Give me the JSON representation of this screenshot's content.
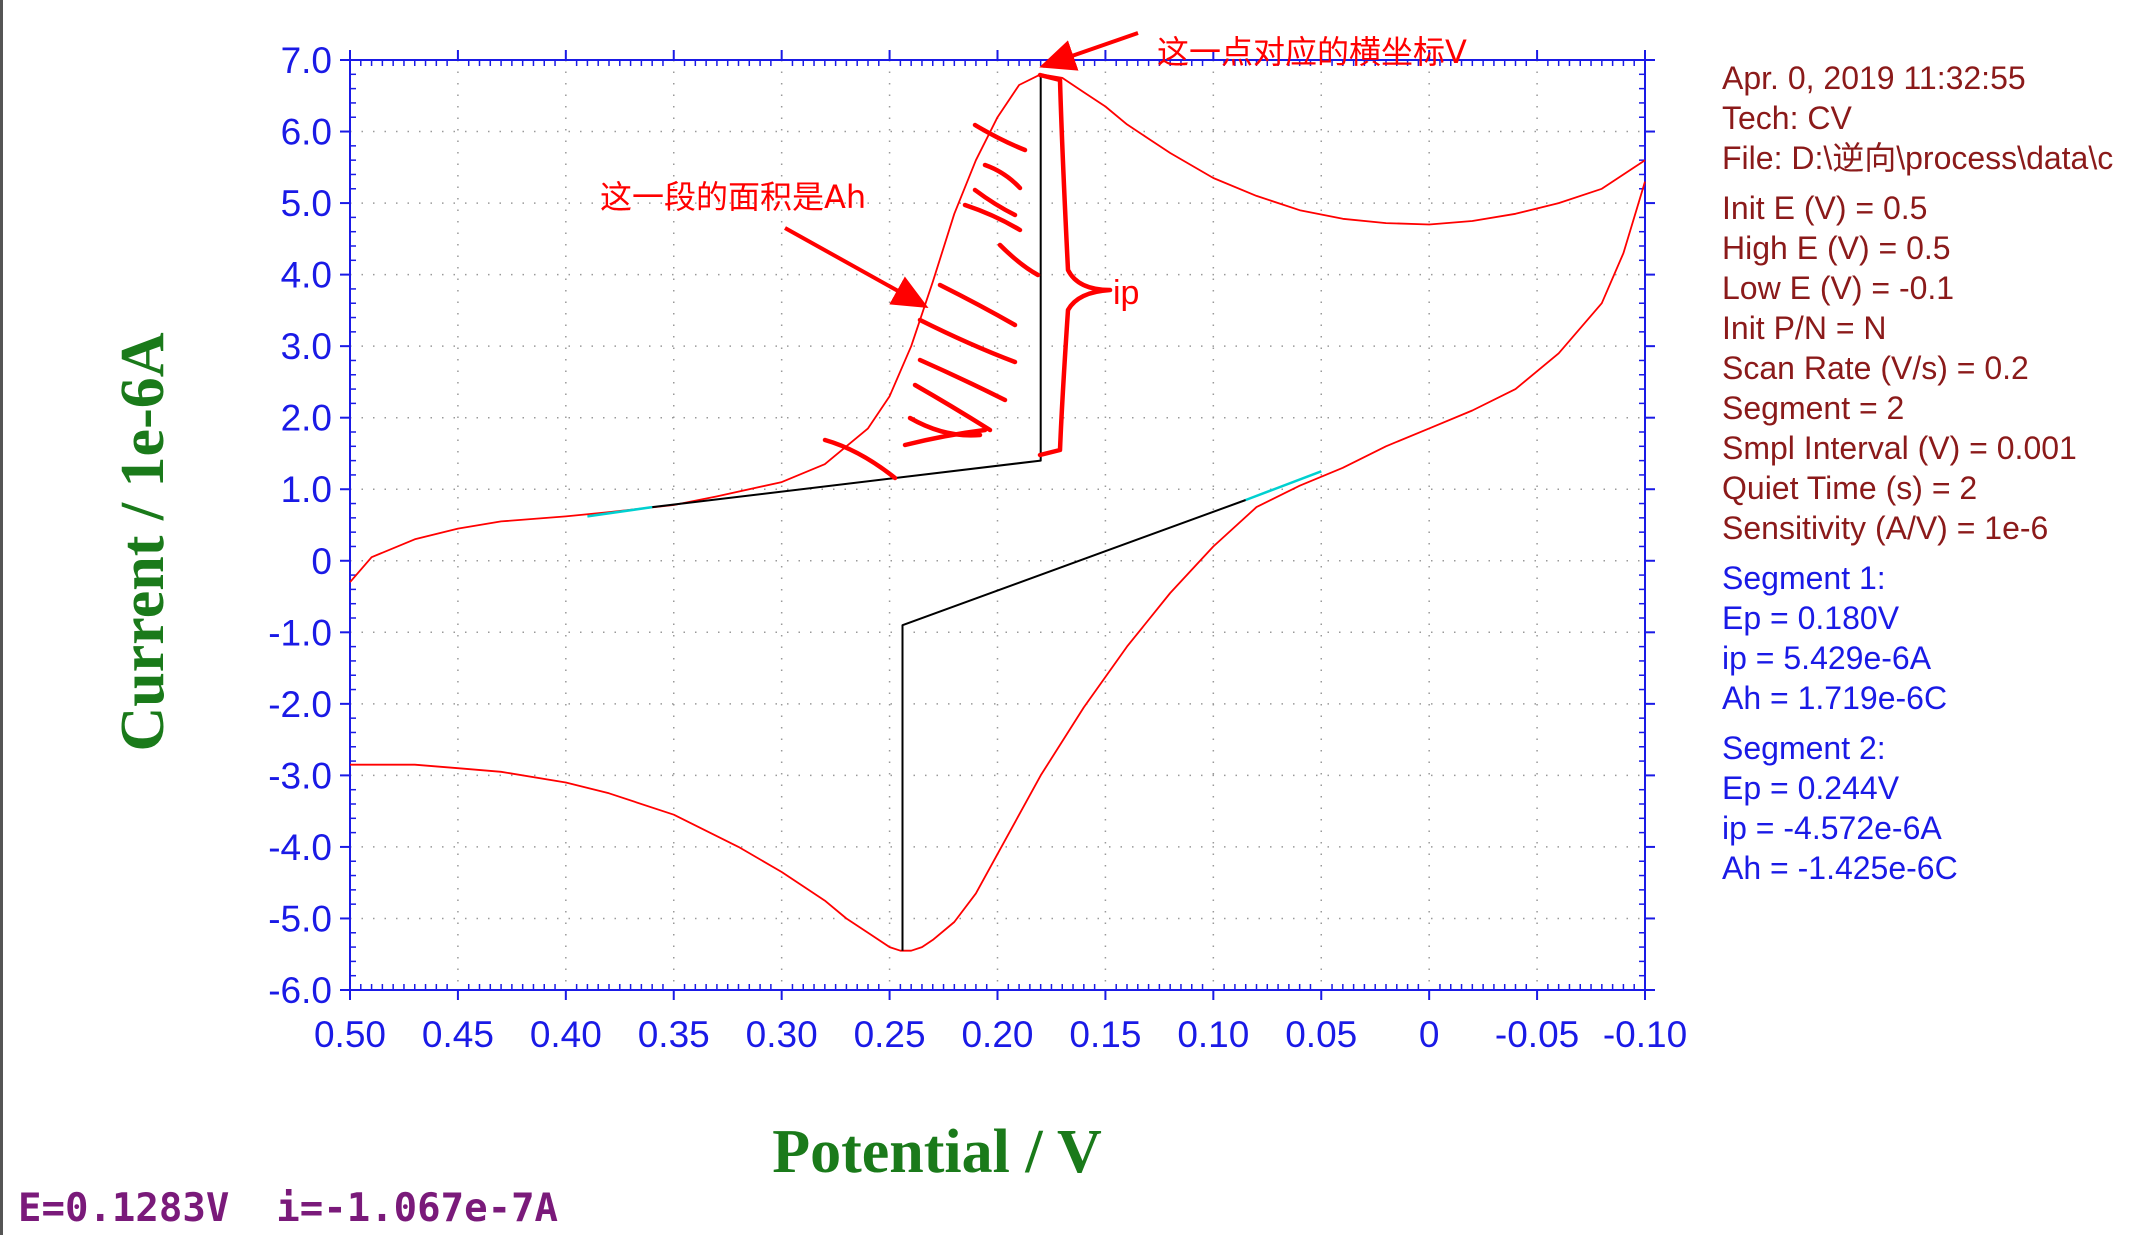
{
  "chart_data": {
    "type": "line",
    "xlabel": "Potential / V",
    "ylabel": "Current / 1e-6A",
    "xlim": [
      0.5,
      -0.1
    ],
    "ylim": [
      -6.0,
      7.0
    ],
    "x_reversed": true,
    "x_ticks": [
      "0.50",
      "0.45",
      "0.40",
      "0.35",
      "0.30",
      "0.25",
      "0.20",
      "0.15",
      "0.10",
      "0.05",
      "0",
      "-0.05",
      "-0.10"
    ],
    "y_ticks": [
      "7.0",
      "6.0",
      "5.0",
      "4.0",
      "3.0",
      "2.0",
      "1.0",
      "0",
      "-1.0",
      "-2.0",
      "-3.0",
      "-4.0",
      "-5.0",
      "-6.0"
    ],
    "grid": true,
    "series": [
      {
        "color": "#ff0000",
        "x": [
          0.5,
          0.49,
          0.47,
          0.45,
          0.43,
          0.4,
          0.38,
          0.35,
          0.33,
          0.3,
          0.28,
          0.26,
          0.25,
          0.24,
          0.23,
          0.22,
          0.21,
          0.2,
          0.19,
          0.18,
          0.17,
          0.16,
          0.15,
          0.14,
          0.13,
          0.12,
          0.1,
          0.08,
          0.06,
          0.04,
          0.02,
          0.0,
          -0.02,
          -0.04,
          -0.06,
          -0.08,
          -0.1
        ],
        "y": [
          -0.3,
          0.05,
          0.3,
          0.45,
          0.55,
          0.62,
          0.68,
          0.78,
          0.9,
          1.1,
          1.35,
          1.85,
          2.3,
          3.0,
          3.9,
          4.85,
          5.6,
          6.2,
          6.65,
          6.8,
          6.75,
          6.55,
          6.35,
          6.1,
          5.9,
          5.7,
          5.35,
          5.1,
          4.9,
          4.78,
          4.72,
          4.7,
          4.75,
          4.85,
          5.0,
          5.2,
          5.6
        ]
      },
      {
        "color": "#ff0000",
        "x": [
          -0.1,
          -0.09,
          -0.08,
          -0.06,
          -0.04,
          -0.02,
          0.0,
          0.02,
          0.04,
          0.06,
          0.08,
          0.1,
          0.12,
          0.14,
          0.16,
          0.18,
          0.2,
          0.21,
          0.22,
          0.23,
          0.235,
          0.24,
          0.245,
          0.25,
          0.26,
          0.27,
          0.28,
          0.3,
          0.32,
          0.35,
          0.38,
          0.4,
          0.43,
          0.45,
          0.47,
          0.5
        ],
        "y": [
          5.3,
          4.3,
          3.6,
          2.9,
          2.4,
          2.1,
          1.85,
          1.6,
          1.3,
          1.05,
          0.75,
          0.2,
          -0.45,
          -1.2,
          -2.05,
          -3.0,
          -4.1,
          -4.65,
          -5.05,
          -5.3,
          -5.4,
          -5.45,
          -5.45,
          -5.4,
          -5.2,
          -5.0,
          -4.75,
          -4.35,
          -4.0,
          -3.55,
          -3.25,
          -3.1,
          -2.95,
          -2.9,
          -2.85,
          -2.85
        ]
      },
      {
        "color": "#000000",
        "x": [
          0.36,
          0.18,
          0.18
        ],
        "y": [
          0.75,
          1.4,
          6.8
        ]
      },
      {
        "color": "#000000",
        "x": [
          0.085,
          0.244,
          0.244
        ],
        "y": [
          0.85,
          -0.9,
          -5.45
        ]
      }
    ],
    "baseline_segments": [
      {
        "color": "#00d0d0",
        "x": [
          0.39,
          0.36
        ],
        "y": [
          0.62,
          0.75
        ]
      },
      {
        "color": "#00d0d0",
        "x": [
          0.085,
          0.05
        ],
        "y": [
          0.85,
          1.25
        ]
      }
    ],
    "annotations": [
      {
        "text": "这一点对应的横坐标V",
        "color": "#ff0000"
      },
      {
        "text": "这一段的面积是Ah",
        "color": "#ff0000"
      },
      {
        "text": "ip",
        "color": "#ff0000"
      }
    ]
  },
  "info_panel": {
    "header": [
      "Apr. 0, 2019   11:32:55",
      "Tech: CV",
      "File: D:\\逆向\\process\\data\\c"
    ],
    "params": [
      "Init E (V) = 0.5",
      "High E (V) = 0.5",
      "Low E (V) = -0.1",
      "Init P/N = N",
      "Scan Rate (V/s) = 0.2",
      "Segment = 2",
      "Smpl Interval (V) = 0.001",
      "Quiet Time (s) = 2",
      "Sensitivity (A/V) = 1e-6"
    ],
    "segment1": [
      "Segment 1:",
      "Ep = 0.180V",
      "ip = 5.429e-6A",
      "Ah = 1.719e-6C"
    ],
    "segment2": [
      "Segment 2:",
      "Ep = 0.244V",
      "ip = -4.572e-6A",
      "Ah = -1.425e-6C"
    ]
  },
  "status": {
    "text": "E=0.1283V  i=-1.067e-7A"
  },
  "colors": {
    "curve": "#ff0000",
    "baseline": "#000000",
    "axis": "#1a1ae6",
    "axis_title": "#1a7a1a",
    "info_brown": "#8b1a1a",
    "info_blue": "#1a1ae6",
    "status": "#7a1a7a"
  }
}
